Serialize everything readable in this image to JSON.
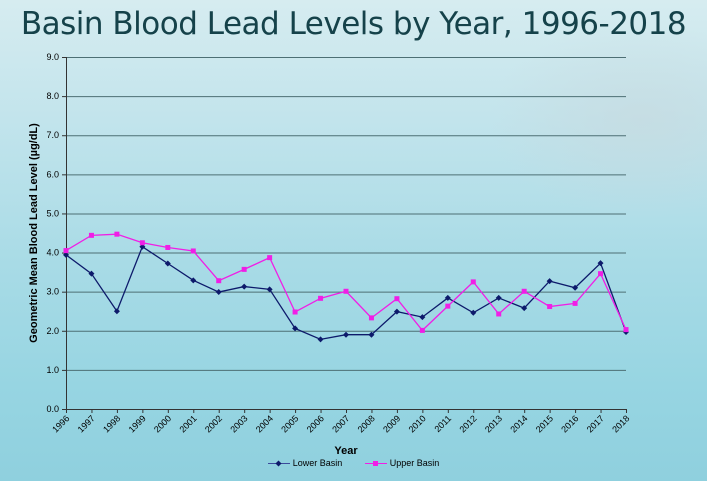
{
  "title": "Basin Blood Lead Levels by Year, 1996-2018",
  "chart_data": {
    "type": "line",
    "title": "Basin Blood Lead Levels by Year, 1996-2018",
    "xlabel": "Year",
    "ylabel": "Geometric Mean Blood Lead Level (µg/dL)",
    "ylim": [
      0,
      9
    ],
    "yticks": [
      "0.0",
      "1.0",
      "2.0",
      "3.0",
      "4.0",
      "5.0",
      "6.0",
      "7.0",
      "8.0",
      "9.0"
    ],
    "grid": true,
    "legend_position": "bottom",
    "categories": [
      "1996",
      "1997",
      "1998",
      "1999",
      "2000",
      "2001",
      "2002",
      "2003",
      "2004",
      "2005",
      "2006",
      "2007",
      "2008",
      "2009",
      "2010",
      "2011",
      "2012",
      "2013",
      "2014",
      "2015",
      "2016",
      "2017",
      "2018"
    ],
    "series": [
      {
        "name": "Lower Basin",
        "color": "#0d1a6b",
        "marker": "diamond",
        "values": [
          3.94,
          3.46,
          2.5,
          4.15,
          3.72,
          3.29,
          2.99,
          3.13,
          3.06,
          2.06,
          1.78,
          1.9,
          1.9,
          2.49,
          2.35,
          2.84,
          2.46,
          2.84,
          2.58,
          3.27,
          3.1,
          3.73,
          1.97
        ]
      },
      {
        "name": "Upper Basin",
        "color": "#f01ee6",
        "marker": "square",
        "values": [
          4.05,
          4.44,
          4.47,
          4.25,
          4.13,
          4.04,
          3.28,
          3.57,
          3.87,
          2.48,
          2.83,
          3.01,
          2.33,
          2.82,
          2.01,
          2.63,
          3.25,
          2.43,
          3.01,
          2.62,
          2.7,
          3.46,
          2.03
        ]
      }
    ]
  }
}
